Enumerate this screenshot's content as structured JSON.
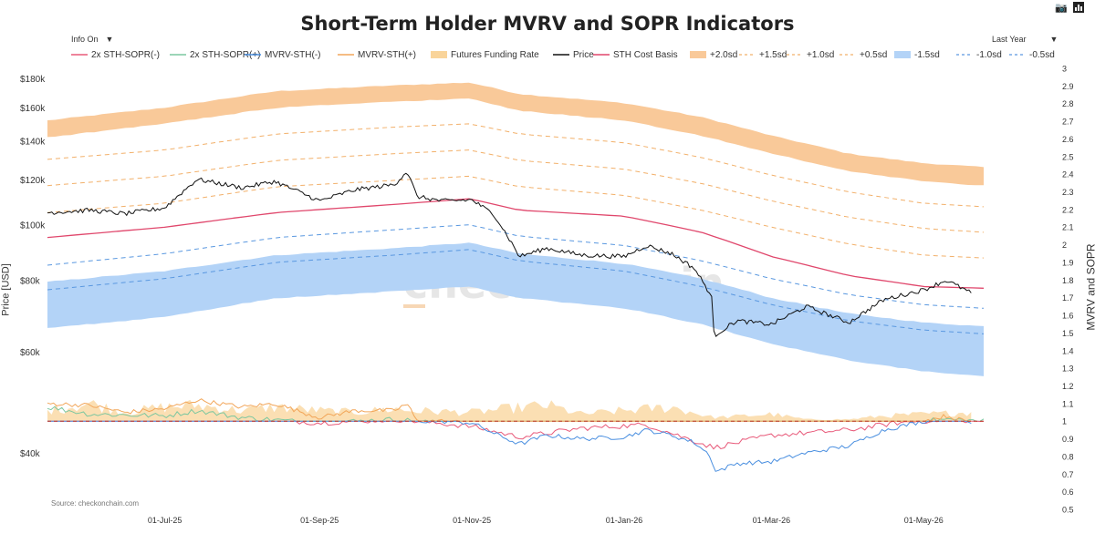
{
  "title": "Short-Term Holder MVRV and SOPR Indicators",
  "controls": {
    "info_toggle": "Info On",
    "range_select": "Last Year"
  },
  "toolbar": {
    "camera_icon": "camera-icon",
    "bars_icon": "bar-chart-icon"
  },
  "source": "Source: checkonchain.com",
  "watermark": "checkonchain",
  "colors": {
    "sopr_neg": "#e85a7a",
    "sopr_pos": "#7cc7a0",
    "mvrv_neg": "#4a8fe0",
    "mvrv_pos": "#f2a65a",
    "funding": "#f9d49a",
    "price": "#111111",
    "cost_basis": "#e0476c",
    "band_upper": "#f9c999",
    "band_lower": "#b3d3f7",
    "dash_upper": "#f2b06a",
    "dash_lower": "#5a98e0"
  },
  "chart_data": {
    "type": "line",
    "title": "Short-Term Holder MVRV and SOPR Indicators",
    "x_ticks": [
      "01-Jul-25",
      "01-Sep-25",
      "01-Nov-25",
      "01-Jan-26",
      "01-Mar-26",
      "01-May-26"
    ],
    "y_left": {
      "label": "Price [USD]",
      "scale": "log",
      "ticks": [
        "$40k",
        "$60k",
        "$80k",
        "$100k",
        "$120k",
        "$140k",
        "$160k",
        "$180k"
      ]
    },
    "y_right": {
      "label": "MVRV and SOPR",
      "range": [
        0.5,
        3
      ],
      "ticks": [
        "0.5",
        "0.6",
        "0.7",
        "0.8",
        "0.9",
        "1",
        "1.1",
        "1.2",
        "1.3",
        "1.4",
        "1.5",
        "1.6",
        "1.7",
        "1.8",
        "1.9",
        "2",
        "2.1",
        "2.2",
        "2.3",
        "2.4",
        "2.5",
        "2.6",
        "2.7",
        "2.8",
        "2.9",
        "3"
      ]
    },
    "legend": [
      {
        "name": "2x STH-SOPR(-)",
        "style": "line",
        "color": "#e85a7a"
      },
      {
        "name": "2x STH-SOPR(+)",
        "style": "line",
        "color": "#7cc7a0"
      },
      {
        "name": "MVRV-STH(-)",
        "style": "line",
        "color": "#4a8fe0"
      },
      {
        "name": "MVRV-STH(+)",
        "style": "line",
        "color": "#f2a65a"
      },
      {
        "name": "Futures Funding Rate",
        "style": "band",
        "color": "#f9d49a"
      },
      {
        "name": "Price",
        "style": "line",
        "color": "#111111"
      },
      {
        "name": "STH Cost Basis",
        "style": "line",
        "color": "#e0476c"
      },
      {
        "name": "+2.0sd",
        "style": "band",
        "color": "#f9c999"
      },
      {
        "name": "+1.5sd",
        "style": "dash",
        "color": "#f2b06a"
      },
      {
        "name": "+1.0sd",
        "style": "dash",
        "color": "#f2b06a"
      },
      {
        "name": "+0.5sd",
        "style": "dash",
        "color": "#f2b06a"
      },
      {
        "name": "-1.5sd",
        "style": "band",
        "color": "#b3d3f7"
      },
      {
        "name": "-1.0sd",
        "style": "dash",
        "color": "#5a98e0"
      },
      {
        "name": "-0.5sd",
        "style": "dash",
        "color": "#5a98e0"
      }
    ],
    "x_range": [
      "2025-05-15",
      "2026-05-25"
    ],
    "series": {
      "price": {
        "name": "Price",
        "x": [
          "2025-05-15",
          "2025-06-01",
          "2025-06-15",
          "2025-07-01",
          "2025-07-14",
          "2025-08-01",
          "2025-08-14",
          "2025-09-01",
          "2025-09-15",
          "2025-10-01",
          "2025-10-06",
          "2025-10-10",
          "2025-10-20",
          "2025-11-01",
          "2025-11-10",
          "2025-11-20",
          "2025-12-01",
          "2025-12-15",
          "2026-01-01",
          "2026-01-10",
          "2026-01-20",
          "2026-01-29",
          "2026-02-05",
          "2026-02-06",
          "2026-02-15",
          "2026-03-01",
          "2026-03-15",
          "2026-04-01",
          "2026-04-15",
          "2026-05-01",
          "2026-05-10",
          "2026-05-20"
        ],
        "y": [
          105000,
          106000,
          104500,
          107000,
          120000,
          116000,
          119000,
          110000,
          115000,
          117500,
          124000,
          112000,
          110000,
          110500,
          104000,
          88000,
          91000,
          88500,
          88000,
          92000,
          89000,
          84000,
          75000,
          64000,
          68000,
          67000,
          72000,
          67500,
          74000,
          77000,
          80000,
          76000
        ]
      },
      "sth_cost_basis": {
        "name": "STH Cost Basis",
        "x": [
          "2025-05-15",
          "2025-07-01",
          "2025-08-15",
          "2025-10-01",
          "2025-10-31",
          "2025-11-20",
          "2026-01-01",
          "2026-02-01",
          "2026-03-01",
          "2026-04-01",
          "2026-05-01",
          "2026-05-25"
        ],
        "y": [
          95000,
          99000,
          105000,
          108500,
          111000,
          106000,
          103500,
          97000,
          88000,
          81500,
          78000,
          77500
        ]
      },
      "sd_plus_2_band": {
        "name": "+2.0sd",
        "x": [
          "2025-05-15",
          "2025-07-01",
          "2025-08-15",
          "2025-10-01",
          "2025-10-31",
          "2025-11-20",
          "2026-01-01",
          "2026-02-01",
          "2026-03-01",
          "2026-04-01",
          "2026-05-01",
          "2026-05-25"
        ],
        "low": [
          142000,
          150000,
          160000,
          164000,
          166000,
          158000,
          152000,
          143000,
          133000,
          124000,
          119000,
          117000
        ],
        "high": [
          152000,
          160000,
          171000,
          175000,
          177000,
          169000,
          163000,
          154000,
          143000,
          133000,
          128000,
          126000
        ]
      },
      "sd_plus_1_5": {
        "name": "+1.5sd",
        "x": [
          "2025-05-15",
          "2025-07-01",
          "2025-08-15",
          "2025-10-01",
          "2025-10-31",
          "2025-11-20",
          "2026-01-01",
          "2026-02-01",
          "2026-03-01",
          "2026-04-01",
          "2026-05-01",
          "2026-05-25"
        ],
        "y": [
          130000,
          135000,
          144000,
          148000,
          150000,
          144000,
          139000,
          131000,
          122000,
          114000,
          109000,
          107500
        ]
      },
      "sd_plus_1_0": {
        "name": "+1.0sd",
        "x": [
          "2025-05-15",
          "2025-07-01",
          "2025-08-15",
          "2025-10-01",
          "2025-10-31",
          "2025-11-20",
          "2026-01-01",
          "2026-02-01",
          "2026-03-01",
          "2026-04-01",
          "2026-05-01",
          "2026-05-25"
        ],
        "y": [
          117000,
          121500,
          129500,
          133000,
          135000,
          129500,
          125000,
          118000,
          110000,
          103000,
          98500,
          97000
        ]
      },
      "sd_plus_0_5": {
        "name": "+0.5sd",
        "x": [
          "2025-05-15",
          "2025-07-01",
          "2025-08-15",
          "2025-10-01",
          "2025-10-31",
          "2025-11-20",
          "2026-01-01",
          "2026-02-01",
          "2026-03-01",
          "2026-04-01",
          "2026-05-01",
          "2026-05-25"
        ],
        "y": [
          105000,
          109000,
          116500,
          119500,
          121500,
          116500,
          112500,
          106000,
          99000,
          92500,
          88500,
          87500
        ]
      },
      "sd_minus_0_5": {
        "name": "-0.5sd",
        "x": [
          "2025-05-15",
          "2025-07-01",
          "2025-08-15",
          "2025-10-01",
          "2025-10-31",
          "2025-11-20",
          "2026-01-01",
          "2026-02-01",
          "2026-03-01",
          "2026-04-01",
          "2026-05-01",
          "2026-05-25"
        ],
        "y": [
          85000,
          89000,
          95000,
          98000,
          100000,
          95500,
          92000,
          86500,
          80500,
          75500,
          72500,
          71500
        ]
      },
      "sd_minus_1_0": {
        "name": "-1.0sd",
        "x": [
          "2025-05-15",
          "2025-07-01",
          "2025-08-15",
          "2025-10-01",
          "2025-10-31",
          "2025-11-20",
          "2026-01-01",
          "2026-02-01",
          "2026-03-01",
          "2026-04-01",
          "2026-05-01",
          "2026-05-25"
        ],
        "y": [
          77000,
          80500,
          86000,
          88500,
          90500,
          86500,
          83000,
          78000,
          72500,
          68000,
          65500,
          64500
        ]
      },
      "sd_minus_1_5_band": {
        "name": "-1.5sd",
        "x": [
          "2025-05-15",
          "2025-07-01",
          "2025-08-15",
          "2025-10-01",
          "2025-10-31",
          "2025-11-20",
          "2026-01-01",
          "2026-02-01",
          "2026-03-01",
          "2026-04-01",
          "2026-05-01",
          "2026-05-25"
        ],
        "low": [
          66000,
          69000,
          74500,
          76500,
          78000,
          74500,
          71500,
          67000,
          62000,
          58000,
          55500,
          54500
        ],
        "high": [
          79500,
          83000,
          88500,
          91000,
          93000,
          89000,
          85500,
          80500,
          74500,
          70000,
          67500,
          66500
        ]
      },
      "mvrv_sth": {
        "name": "MVRV-STH",
        "x": [
          "2025-05-15",
          "2025-06-01",
          "2025-06-15",
          "2025-07-01",
          "2025-07-14",
          "2025-08-01",
          "2025-08-14",
          "2025-09-01",
          "2025-09-15",
          "2025-10-01",
          "2025-10-06",
          "2025-10-10",
          "2025-10-20",
          "2025-11-01",
          "2025-11-10",
          "2025-11-20",
          "2025-12-01",
          "2025-12-15",
          "2026-01-01",
          "2026-01-10",
          "2026-01-20",
          "2026-01-29",
          "2026-02-05",
          "2026-02-06",
          "2026-02-15",
          "2026-03-01",
          "2026-03-15",
          "2026-04-01",
          "2026-04-15",
          "2026-05-01",
          "2026-05-10",
          "2026-05-20"
        ],
        "y": [
          1.1,
          1.09,
          1.05,
          1.07,
          1.12,
          1.08,
          1.1,
          1.02,
          1.06,
          1.06,
          1.1,
          1.0,
          1.0,
          0.99,
          0.93,
          0.87,
          0.92,
          0.9,
          0.91,
          0.95,
          0.92,
          0.88,
          0.8,
          0.71,
          0.76,
          0.77,
          0.82,
          0.86,
          0.95,
          1.0,
          1.03,
          0.99
        ]
      },
      "sopr_sth_2x": {
        "name": "2x STH-SOPR",
        "x": [
          "2025-05-15",
          "2025-06-01",
          "2025-07-01",
          "2025-07-14",
          "2025-08-01",
          "2025-09-01",
          "2025-10-01",
          "2025-10-10",
          "2025-11-01",
          "2025-11-20",
          "2025-12-15",
          "2026-01-10",
          "2026-02-06",
          "2026-03-01",
          "2026-04-01",
          "2026-04-20",
          "2026-05-10",
          "2026-05-25"
        ],
        "y": [
          1.08,
          1.04,
          1.03,
          1.06,
          1.02,
          0.99,
          1.01,
          1.0,
          0.97,
          0.91,
          0.96,
          0.98,
          0.85,
          0.92,
          0.95,
          0.99,
          1.01,
          1.0
        ]
      },
      "futures_funding": {
        "name": "Futures Funding Rate",
        "x": [
          "2025-05-15",
          "2025-06-01",
          "2025-06-15",
          "2025-07-01",
          "2025-07-14",
          "2025-08-01",
          "2025-08-14",
          "2025-09-01",
          "2025-09-15",
          "2025-10-01",
          "2025-10-06",
          "2025-11-01",
          "2025-11-15",
          "2025-12-01",
          "2025-12-15",
          "2026-01-01",
          "2026-01-20",
          "2026-02-06",
          "2026-03-01",
          "2026-03-15",
          "2026-04-01",
          "2026-04-15",
          "2026-05-01",
          "2026-05-20"
        ],
        "y": [
          1.06,
          1.1,
          1.05,
          1.08,
          1.09,
          1.06,
          1.08,
          1.06,
          1.05,
          1.07,
          1.06,
          1.05,
          1.07,
          1.09,
          1.04,
          1.06,
          1.08,
          1.02,
          1.04,
          1.01,
          1.01,
          1.03,
          1.04,
          1.05
        ]
      },
      "baseline": {
        "name": "1.0",
        "y": 1.0
      }
    }
  }
}
